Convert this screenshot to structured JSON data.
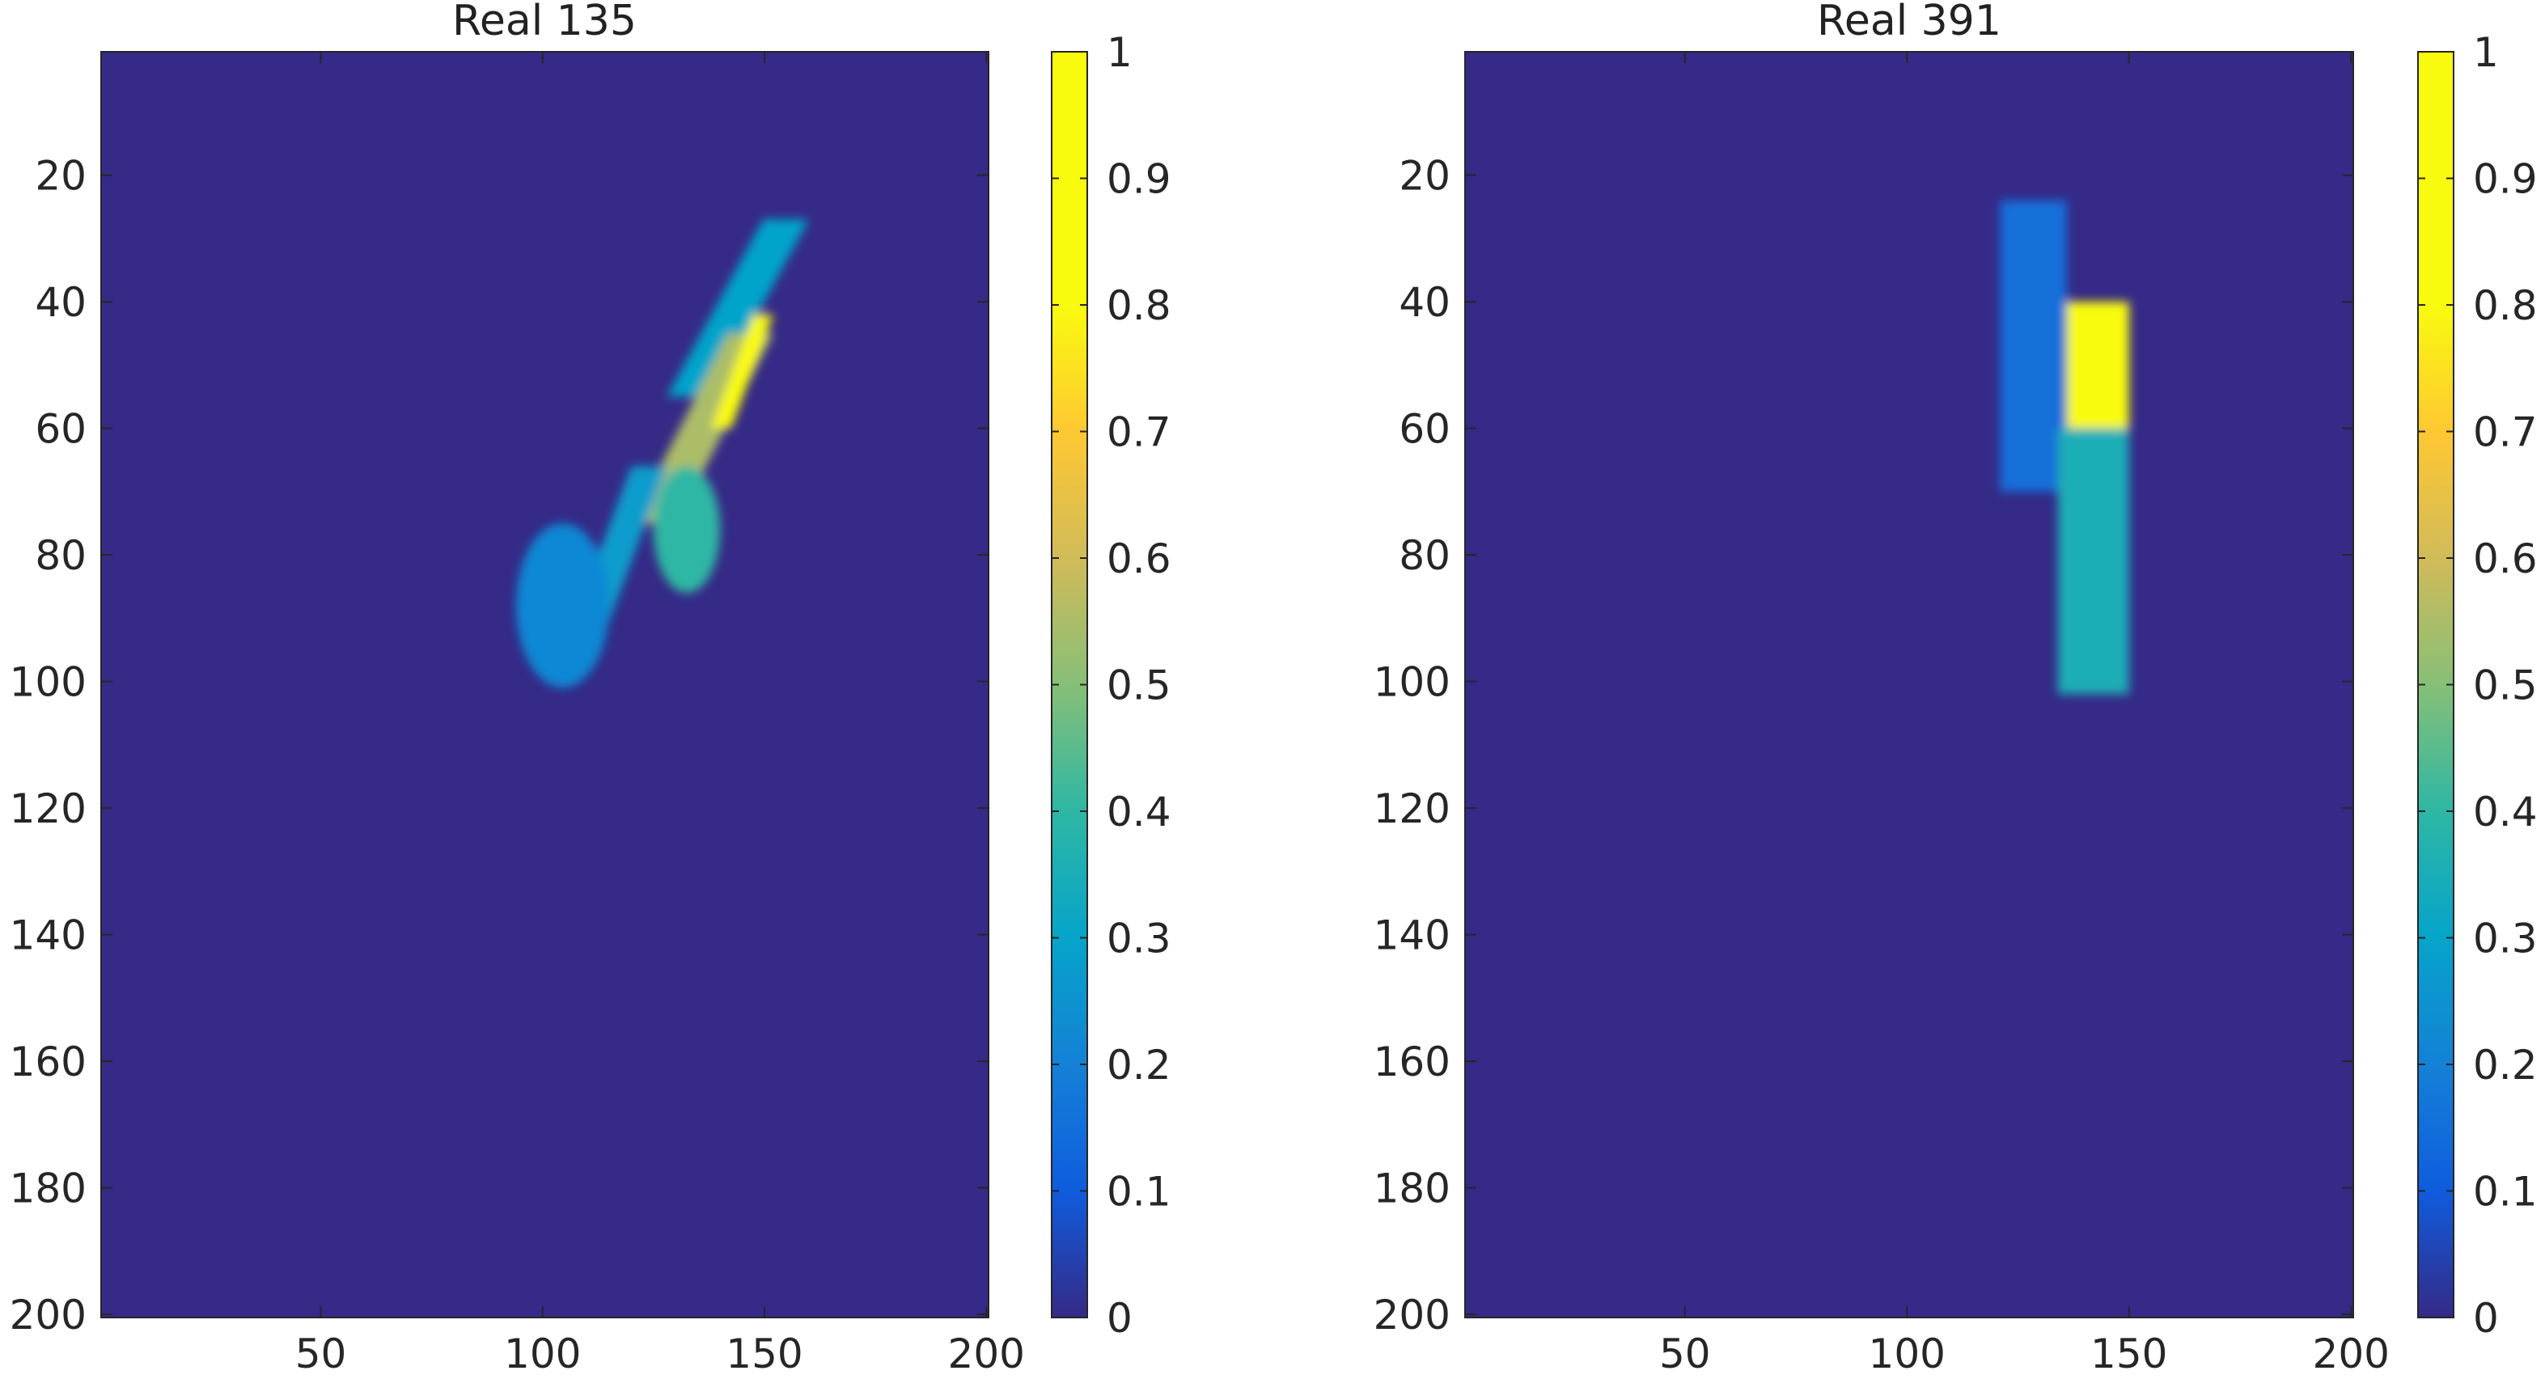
{
  "chart_data": [
    {
      "type": "heatmap",
      "title": "Real 135",
      "xlabel": "",
      "ylabel": "",
      "xlim": [
        1,
        200
      ],
      "ylim": [
        200,
        1
      ],
      "y_axis_direction": "reversed",
      "xticks": [
        50,
        100,
        150,
        200
      ],
      "yticks": [
        20,
        40,
        60,
        80,
        100,
        120,
        140,
        160,
        180,
        200
      ],
      "grid": false,
      "colormap": "parula",
      "colorbar": {
        "clim": [
          0,
          1
        ],
        "ticks": [
          0,
          0.1,
          0.2,
          0.3,
          0.4,
          0.5,
          0.6,
          0.7,
          0.8,
          0.9,
          1
        ]
      },
      "background_value": 0,
      "features": [
        {
          "shape": "diagonal band",
          "x": [
            128,
            160
          ],
          "y": [
            27,
            55
          ],
          "value": 0.3
        },
        {
          "shape": "diagonal band",
          "x": [
            120,
            152
          ],
          "y": [
            45,
            75
          ],
          "value": 0.55
        },
        {
          "shape": "diagonal band",
          "x": [
            138,
            152
          ],
          "y": [
            42,
            60
          ],
          "value": 0.8
        },
        {
          "shape": "blob",
          "x": [
            125,
            140
          ],
          "y": [
            66,
            86
          ],
          "value": 0.4
        },
        {
          "shape": "diagonal band",
          "x": [
            103,
            128
          ],
          "y": [
            66,
            98
          ],
          "value": 0.28
        },
        {
          "shape": "blob",
          "x": [
            94,
            115
          ],
          "y": [
            75,
            101
          ],
          "value": 0.22
        }
      ]
    },
    {
      "type": "heatmap",
      "title": "Real 391",
      "xlabel": "",
      "ylabel": "",
      "xlim": [
        1,
        200
      ],
      "ylim": [
        200,
        1
      ],
      "y_axis_direction": "reversed",
      "xticks": [
        50,
        100,
        150,
        200
      ],
      "yticks": [
        20,
        40,
        60,
        80,
        100,
        120,
        140,
        160,
        180,
        200
      ],
      "grid": false,
      "colormap": "parula",
      "colorbar": {
        "clim": [
          0,
          1
        ],
        "ticks": [
          0,
          0.1,
          0.2,
          0.3,
          0.4,
          0.5,
          0.6,
          0.7,
          0.8,
          0.9,
          1
        ]
      },
      "background_value": 0,
      "features": [
        {
          "shape": "column",
          "x": [
            121,
            136
          ],
          "y": [
            24,
            70
          ],
          "value": 0.15
        },
        {
          "shape": "column",
          "x": [
            136,
            150
          ],
          "y": [
            40,
            60
          ],
          "value": 0.8
        },
        {
          "shape": "column",
          "x": [
            134,
            150
          ],
          "y": [
            60,
            102
          ],
          "value": 0.35
        }
      ]
    }
  ]
}
